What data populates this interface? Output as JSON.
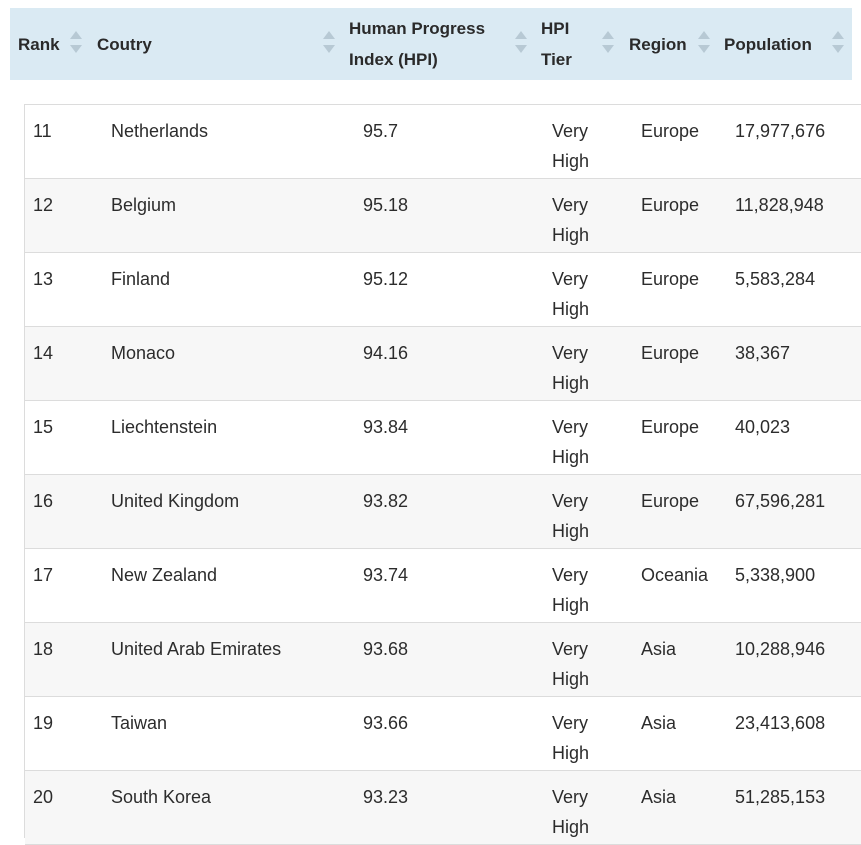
{
  "table": {
    "columns": [
      {
        "key": "rank",
        "label": "Rank"
      },
      {
        "key": "country",
        "label": "Coutry"
      },
      {
        "key": "hpi",
        "label": "Human Progress Index (HPI)"
      },
      {
        "key": "tier",
        "label": "HPI Tier"
      },
      {
        "key": "region",
        "label": "Region"
      },
      {
        "key": "population",
        "label": "Population"
      }
    ],
    "rows": [
      {
        "rank": "11",
        "country": "Netherlands",
        "hpi": "95.7",
        "tier": "Very High",
        "region": "Europe",
        "population": "17,977,676"
      },
      {
        "rank": "12",
        "country": "Belgium",
        "hpi": "95.18",
        "tier": "Very High",
        "region": "Europe",
        "population": "11,828,948"
      },
      {
        "rank": "13",
        "country": "Finland",
        "hpi": "95.12",
        "tier": "Very High",
        "region": "Europe",
        "population": "5,583,284"
      },
      {
        "rank": "14",
        "country": "Monaco",
        "hpi": "94.16",
        "tier": "Very High",
        "region": "Europe",
        "population": "38,367"
      },
      {
        "rank": "15",
        "country": "Liechtenstein",
        "hpi": "93.84",
        "tier": "Very High",
        "region": "Europe",
        "population": "40,023"
      },
      {
        "rank": "16",
        "country": "United Kingdom",
        "hpi": "93.82",
        "tier": "Very High",
        "region": "Europe",
        "population": "67,596,281"
      },
      {
        "rank": "17",
        "country": "New Zealand",
        "hpi": "93.74",
        "tier": "Very High",
        "region": "Oceania",
        "population": "5,338,900"
      },
      {
        "rank": "18",
        "country": "United Arab Emirates",
        "hpi": "93.68",
        "tier": "Very High",
        "region": "Asia",
        "population": "10,288,946"
      },
      {
        "rank": "19",
        "country": "Taiwan",
        "hpi": "93.66",
        "tier": "Very High",
        "region": "Asia",
        "population": "23,413,608"
      },
      {
        "rank": "20",
        "country": "South Korea",
        "hpi": "93.23",
        "tier": "Very High",
        "region": "Asia",
        "population": "51,285,153"
      }
    ]
  },
  "colors": {
    "header_bg": "#daeaf3",
    "sort_icon": "#b7c9d4",
    "row_alt_bg": "#f7f7f7",
    "border": "#dcdcdc"
  }
}
